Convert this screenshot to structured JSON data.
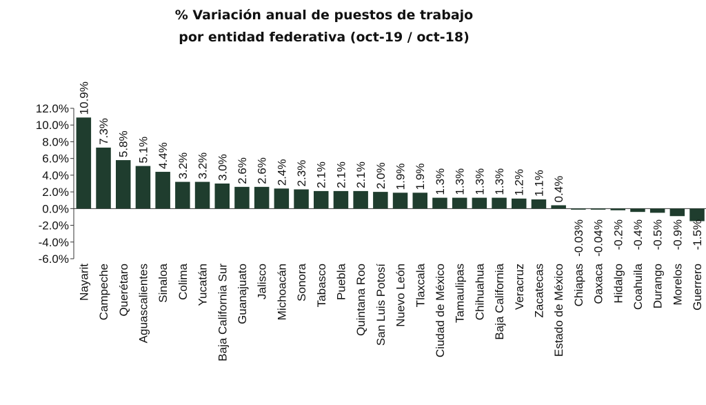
{
  "chart_data": {
    "type": "bar",
    "title_line1": "% Variación anual de puestos de trabajo",
    "title_line2": "por entidad federativa (oct-19 / oct-18)",
    "xlabel": "",
    "ylabel": "",
    "ylim": [
      -6,
      12
    ],
    "y_ticks": [
      "12.0%",
      "10.0%",
      "8.0%",
      "6.0%",
      "4.0%",
      "2.0%",
      "0.0%",
      "-2.0%",
      "-4.0%",
      "-6.0%"
    ],
    "bar_color": "#1f3d2e",
    "categories": [
      "Nayarit",
      "Campeche",
      "Querétaro",
      "Aguascalientes",
      "Sinaloa",
      "Colima",
      "Yucatán",
      "Baja California Sur",
      "Guanajuato",
      "Jalisco",
      "Michoacán",
      "Sonora",
      "Tabasco",
      "Puebla",
      "Quintana Roo",
      "San Luis Potosí",
      "Nuevo León",
      "Tlaxcala",
      "Ciudad de México",
      "Tamaulipas",
      "Chihuahua",
      "Baja California",
      "Veracruz",
      "Zacatecas",
      "Estado de México",
      "Chiapas",
      "Oaxaca",
      "Hidalgo",
      "Coahuila",
      "Durango",
      "Morelos",
      "Guerrero"
    ],
    "values": [
      10.9,
      7.3,
      5.8,
      5.1,
      4.4,
      3.2,
      3.2,
      3.0,
      2.6,
      2.6,
      2.4,
      2.3,
      2.1,
      2.1,
      2.1,
      2.0,
      1.9,
      1.9,
      1.3,
      1.3,
      1.3,
      1.3,
      1.2,
      1.1,
      0.4,
      -0.03,
      -0.04,
      -0.2,
      -0.4,
      -0.5,
      -0.9,
      -1.5
    ],
    "labels": [
      "10.9%",
      "7.3%",
      "5.8%",
      "5.1%",
      "4.4%",
      "3.2%",
      "3.2%",
      "3.0%",
      "2.6%",
      "2.6%",
      "2.4%",
      "2.3%",
      "2.1%",
      "2.1%",
      "2.1%",
      "2.0%",
      "1.9%",
      "1.9%",
      "1.3%",
      "1.3%",
      "1.3%",
      "1.3%",
      "1.2%",
      "1.1%",
      "0.4%",
      "-0.03%",
      "-0.04%",
      "-0.2%",
      "-0.4%",
      "-0.5%",
      "-0.9%",
      "-1.5%"
    ]
  }
}
